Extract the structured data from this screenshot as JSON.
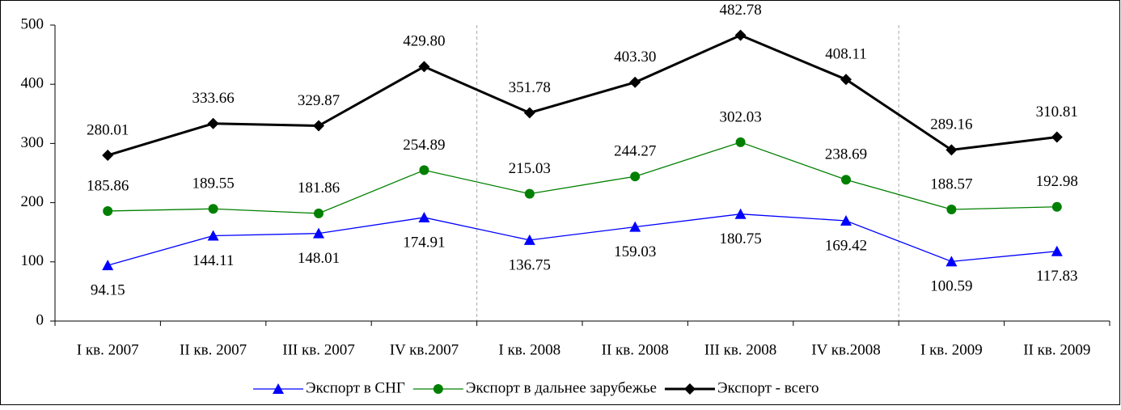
{
  "chart_data": {
    "type": "line",
    "categories": [
      "I кв. 2007",
      "II кв. 2007",
      "III кв. 2007",
      "IV кв.2007",
      "I кв. 2008",
      "II кв. 2008",
      "III кв. 2008",
      "IV кв.2008",
      "I кв. 2009",
      "II кв. 2009"
    ],
    "series": [
      {
        "name": "Экспорт в СНГ",
        "color": "#0000ff",
        "marker": "triangle",
        "label_position": "below",
        "values": [
          94.15,
          144.11,
          148.01,
          174.91,
          136.75,
          159.03,
          180.75,
          169.42,
          100.59,
          117.83
        ],
        "value_labels": [
          "94.15",
          "144.11",
          "148.01",
          "174.91",
          "136.75",
          "159.03",
          "180.75",
          "169.42",
          "100.59",
          "117.83"
        ]
      },
      {
        "name": "Экспорт в дальнее зарубежье",
        "color": "#008000",
        "marker": "circle",
        "label_position": "above",
        "values": [
          185.86,
          189.55,
          181.86,
          254.89,
          215.03,
          244.27,
          302.03,
          238.69,
          188.57,
          192.98
        ],
        "value_labels": [
          "185.86",
          "189.55",
          "181.86",
          "254.89",
          "215.03",
          "244.27",
          "302.03",
          "238.69",
          "188.57",
          "192.98"
        ]
      },
      {
        "name": "Экспорт - всего",
        "color": "#000000",
        "marker": "diamond",
        "label_position": "above",
        "values": [
          280.01,
          333.66,
          329.87,
          429.8,
          351.78,
          403.3,
          482.78,
          408.11,
          289.16,
          310.81
        ],
        "value_labels": [
          "280.01",
          "333.66",
          "329.87",
          "429.80",
          "351.78",
          "403.30",
          "482.78",
          "408.11",
          "289.16",
          "310.81"
        ]
      }
    ],
    "ylim": [
      0,
      500
    ],
    "yticks": [
      0,
      100,
      200,
      300,
      400,
      500
    ],
    "legend": "bottom"
  }
}
